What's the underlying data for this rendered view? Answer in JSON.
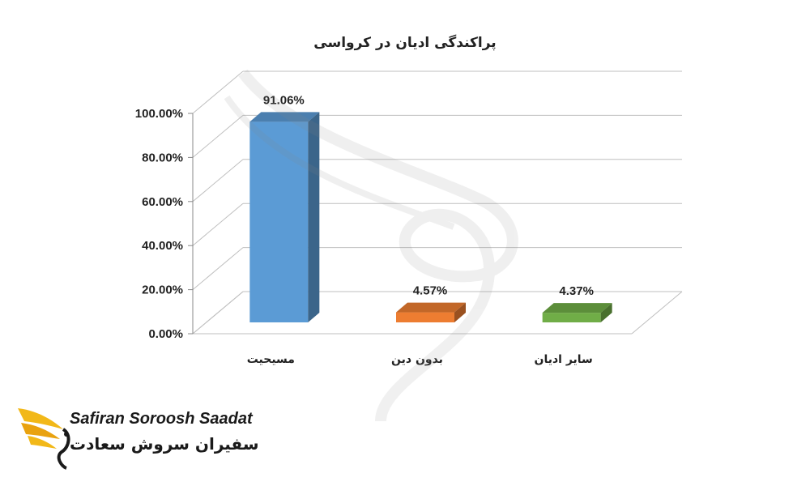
{
  "chart_data": {
    "type": "bar",
    "title": "پراکندگی ادیان در کرواسی",
    "categories": [
      "مسیحیت",
      "بدون دین",
      "سایر ادیان"
    ],
    "values": [
      91.06,
      4.57,
      4.37
    ],
    "data_labels": [
      "91.06%",
      "4.57%",
      "4.37%"
    ],
    "colors": [
      "#5b9bd5",
      "#ed7d31",
      "#70ad47"
    ],
    "y_ticks": [
      "0.00%",
      "20.00%",
      "40.00%",
      "60.00%",
      "80.00%",
      "100.00%"
    ],
    "ylim": [
      0,
      100
    ],
    "grid": true,
    "legend": "none",
    "xlabel": "",
    "ylabel": ""
  },
  "logo": {
    "name_en": "Safiran Soroosh Saadat",
    "name_fa": "سفیران سروش سعادت"
  }
}
